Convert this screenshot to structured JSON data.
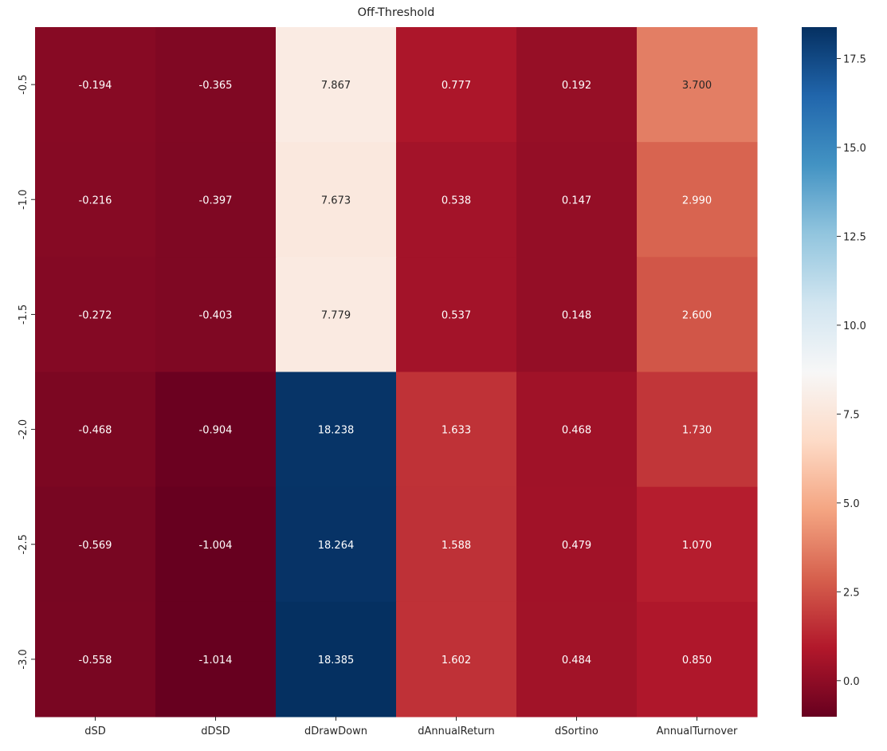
{
  "chart_data": {
    "type": "heatmap",
    "title": "Off-Threshold",
    "xlabel": "",
    "ylabel": "",
    "x_categories": [
      "dSD",
      "dDSD",
      "dDrawDown",
      "dAnnualReturn",
      "dSortino",
      "AnnualTurnover"
    ],
    "y_categories": [
      "-0.5",
      "-1.0",
      "-1.5",
      "-2.0",
      "-2.5",
      "-3.0"
    ],
    "values": [
      [
        -0.194,
        -0.365,
        7.867,
        0.777,
        0.192,
        3.7
      ],
      [
        -0.216,
        -0.397,
        7.673,
        0.538,
        0.147,
        2.99
      ],
      [
        -0.272,
        -0.403,
        7.779,
        0.537,
        0.148,
        2.6
      ],
      [
        -0.468,
        -0.904,
        18.238,
        1.633,
        0.468,
        1.73
      ],
      [
        -0.569,
        -1.004,
        18.264,
        1.588,
        0.479,
        1.07
      ],
      [
        -0.558,
        -1.014,
        18.385,
        1.602,
        0.484,
        0.85
      ]
    ],
    "value_format": "0.000",
    "colormap": "RdBu",
    "vmin": -1.014,
    "vmax": 18.385,
    "colorbar": {
      "position": "right",
      "ticks": [
        0.0,
        2.5,
        5.0,
        7.5,
        10.0,
        12.5,
        15.0,
        17.5
      ],
      "tick_labels": [
        "0.0",
        "2.5",
        "5.0",
        "7.5",
        "10.0",
        "12.5",
        "15.0",
        "17.5"
      ]
    },
    "grid": false
  }
}
